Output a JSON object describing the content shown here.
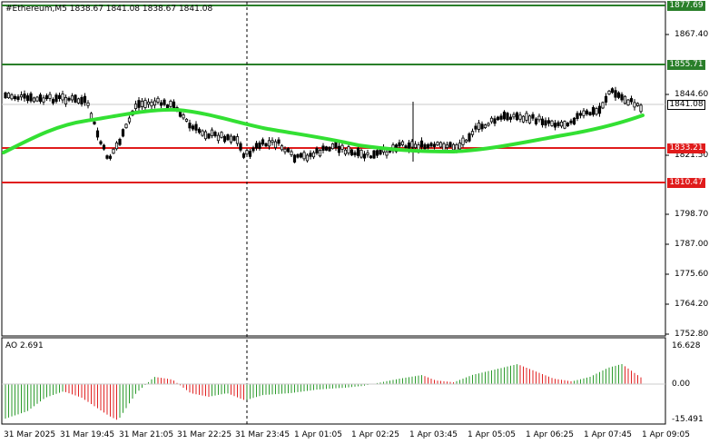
{
  "header": {
    "symbol_line": "#Ethereum,M5  1838.67 1841.08 1838.67 1841.08",
    "ao_label": "AO 2.691"
  },
  "price_axis": {
    "ticks": [
      "1867.40",
      "1844.60",
      "1821.50",
      "1798.70",
      "1787.00",
      "1775.60",
      "1764.20",
      "1752.80"
    ]
  },
  "price_tags": [
    {
      "name": "top-level",
      "text": "1877.69",
      "color": "#2a7f2a"
    },
    {
      "name": "upper-level",
      "text": "1855.71",
      "color": "#2a7f2a"
    },
    {
      "name": "current-price",
      "text": "1841.08",
      "color": "#ffffff"
    },
    {
      "name": "mid-level",
      "text": "1833.21",
      "color": "#e01b1b"
    },
    {
      "name": "lower-level",
      "text": "1810.47",
      "color": "#e01b1b"
    }
  ],
  "ao_axis": {
    "ticks": [
      "16.628",
      "0.00",
      "-15.491"
    ]
  },
  "time_axis": {
    "labels": [
      "31 Mar 2025",
      "31 Mar 19:45",
      "31 Mar 21:05",
      "31 Mar 22:25",
      "31 Mar 23:45",
      "1 Apr 01:05",
      "1 Apr 02:25",
      "1 Apr 03:45",
      "1 Apr 05:05",
      "1 Apr 06:25",
      "1 Apr 07:45",
      "1 Apr 09:05"
    ]
  },
  "colors": {
    "support_resistance_green": "#2a7f2a",
    "support_resistance_red": "#e01b1b",
    "moving_average": "#33e033",
    "ao_up": "#2a9a2a",
    "ao_down": "#e02020"
  }
}
